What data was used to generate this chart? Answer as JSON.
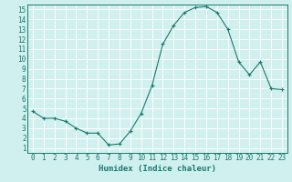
{
  "x": [
    0,
    1,
    2,
    3,
    4,
    5,
    6,
    7,
    8,
    9,
    10,
    11,
    12,
    13,
    14,
    15,
    16,
    17,
    18,
    19,
    20,
    21,
    22,
    23
  ],
  "y": [
    4.7,
    4.0,
    4.0,
    3.7,
    3.0,
    2.5,
    2.5,
    1.3,
    1.4,
    2.7,
    4.5,
    7.3,
    11.5,
    13.4,
    14.7,
    15.2,
    15.3,
    14.7,
    13.0,
    9.7,
    8.4,
    9.7,
    7.0,
    6.9
  ],
  "line_color": "#1a7a6e",
  "marker": "+",
  "marker_size": 3,
  "xlabel": "Humidex (Indice chaleur)",
  "xlim": [
    -0.5,
    23.5
  ],
  "ylim": [
    0.5,
    15.5
  ],
  "yticks": [
    1,
    2,
    3,
    4,
    5,
    6,
    7,
    8,
    9,
    10,
    11,
    12,
    13,
    14,
    15
  ],
  "xticks": [
    0,
    1,
    2,
    3,
    4,
    5,
    6,
    7,
    8,
    9,
    10,
    11,
    12,
    13,
    14,
    15,
    16,
    17,
    18,
    19,
    20,
    21,
    22,
    23
  ],
  "bg_color": "#cff0ee",
  "grid_major_color": "#ffffff",
  "grid_minor_color": "#dff0ee",
  "tick_color": "#1a7a6e",
  "label_fontsize": 5.5,
  "xlabel_fontsize": 6.5
}
